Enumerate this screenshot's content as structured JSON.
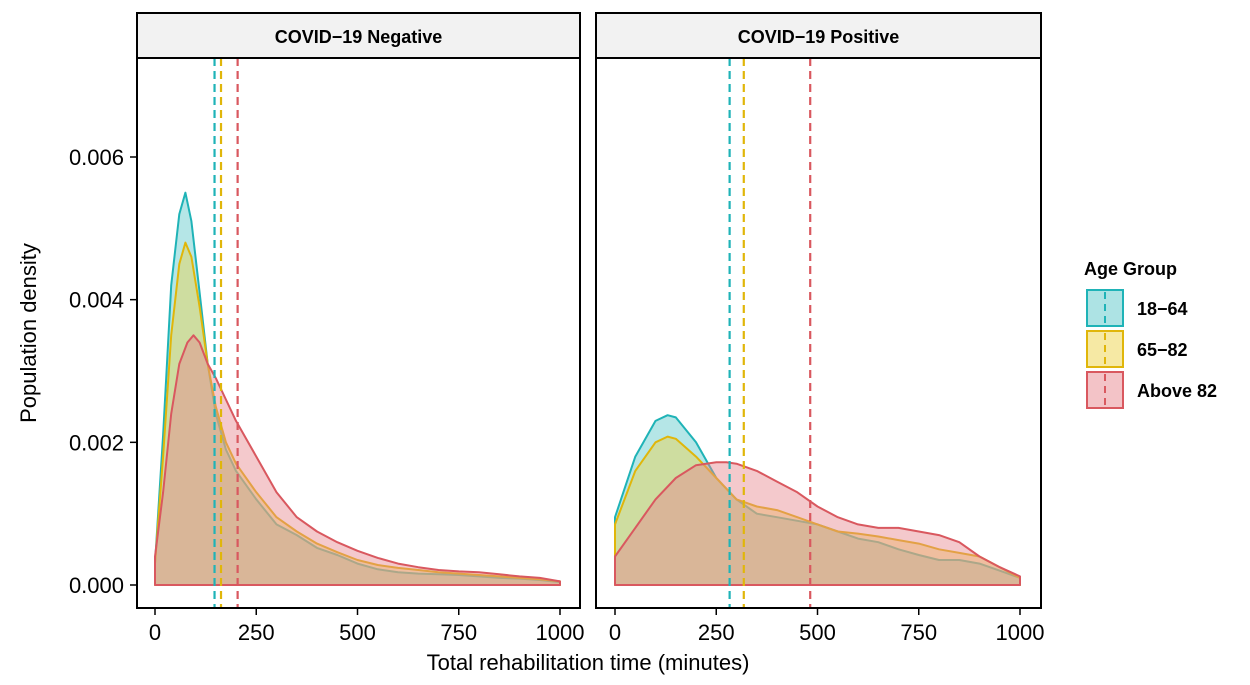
{
  "chart_data": {
    "type": "area",
    "xlabel": "Total rehabilitation time (minutes)",
    "ylabel": "Population density",
    "xlim": [
      0,
      1000
    ],
    "ylim": [
      0,
      0.0073
    ],
    "x_ticks": [
      0,
      250,
      500,
      750,
      1000
    ],
    "x_tick_labels": [
      "0",
      "250",
      "500",
      "750",
      "1000"
    ],
    "y_ticks": [
      0.0,
      0.002,
      0.004,
      0.006
    ],
    "y_tick_labels": [
      "0.000",
      "0.002",
      "0.004",
      "0.006"
    ],
    "grid": false,
    "legend": {
      "title": "Age Group",
      "placement": "right"
    },
    "series_meta": [
      {
        "name": "18−64",
        "fill": "#5CC8C9",
        "stroke": "#1FB3B7"
      },
      {
        "name": "65−82",
        "fill": "#EDD34A",
        "stroke": "#E0B60A"
      },
      {
        "name": "Above 82",
        "fill": "#E7878F",
        "stroke": "#D9585F"
      }
    ],
    "panels": [
      {
        "title": "COVID−19 Negative",
        "series": [
          {
            "name": "18−64",
            "x": [
              0,
              20,
              40,
              60,
              75,
              90,
              110,
              130,
              150,
              175,
              200,
              250,
              300,
              350,
              400,
              450,
              500,
              550,
              600,
              650,
              700,
              750,
              800,
              850,
              900,
              950,
              1000
            ],
            "y": [
              0.0003,
              0.0021,
              0.0042,
              0.0052,
              0.0055,
              0.0051,
              0.0041,
              0.0031,
              0.0024,
              0.0019,
              0.0016,
              0.0012,
              0.00085,
              0.0007,
              0.00052,
              0.00042,
              0.0003,
              0.00022,
              0.00018,
              0.00016,
              0.00015,
              0.00014,
              0.00012,
              0.0001,
              9e-05,
              7e-05,
              4e-05
            ],
            "mean": 147
          },
          {
            "name": "65−82",
            "x": [
              0,
              20,
              40,
              60,
              75,
              90,
              110,
              130,
              150,
              175,
              200,
              250,
              300,
              350,
              400,
              450,
              500,
              550,
              600,
              650,
              700,
              750,
              800,
              850,
              900,
              950,
              1000
            ],
            "y": [
              0.0003,
              0.0018,
              0.0035,
              0.0045,
              0.0048,
              0.0046,
              0.0039,
              0.0031,
              0.0025,
              0.002,
              0.0017,
              0.0013,
              0.00095,
              0.00075,
              0.00058,
              0.00046,
              0.00035,
              0.00028,
              0.00024,
              0.00021,
              0.00018,
              0.00016,
              0.00014,
              0.00012,
              0.0001,
              8e-05,
              5e-05
            ],
            "mean": 163
          },
          {
            "name": "Above 82",
            "x": [
              0,
              20,
              40,
              60,
              80,
              95,
              110,
              130,
              150,
              175,
              200,
              250,
              300,
              350,
              400,
              450,
              500,
              550,
              600,
              650,
              700,
              750,
              800,
              850,
              900,
              950,
              1000
            ],
            "y": [
              0.0004,
              0.0013,
              0.0024,
              0.0031,
              0.0034,
              0.0035,
              0.0034,
              0.0031,
              0.0029,
              0.0026,
              0.0023,
              0.0018,
              0.0013,
              0.00095,
              0.00075,
              0.0006,
              0.00048,
              0.00038,
              0.0003,
              0.00025,
              0.00021,
              0.00019,
              0.00018,
              0.00015,
              0.00012,
              0.0001,
              5e-05
            ],
            "mean": 204
          }
        ]
      },
      {
        "title": "COVID−19 Positive",
        "series": [
          {
            "name": "18−64",
            "x": [
              0,
              50,
              100,
              130,
              150,
              200,
              250,
              300,
              350,
              400,
              450,
              500,
              550,
              600,
              650,
              700,
              750,
              800,
              850,
              900,
              950,
              1000
            ],
            "y": [
              0.00095,
              0.0018,
              0.0023,
              0.00238,
              0.00235,
              0.002,
              0.0015,
              0.0012,
              0.001,
              0.00095,
              0.0009,
              0.00085,
              0.00075,
              0.00065,
              0.0006,
              0.0005,
              0.00042,
              0.00035,
              0.00035,
              0.0003,
              0.0002,
              0.0001
            ],
            "mean": 283
          },
          {
            "name": "65−82",
            "x": [
              0,
              50,
              100,
              130,
              150,
              200,
              250,
              300,
              350,
              400,
              450,
              500,
              550,
              600,
              650,
              700,
              750,
              800,
              850,
              900,
              950,
              1000
            ],
            "y": [
              0.00085,
              0.0016,
              0.002,
              0.00208,
              0.00205,
              0.0018,
              0.0015,
              0.0012,
              0.0011,
              0.00105,
              0.00095,
              0.00085,
              0.00075,
              0.00072,
              0.00068,
              0.00063,
              0.00058,
              0.0005,
              0.00045,
              0.0004,
              0.00025,
              0.0001
            ],
            "mean": 318
          },
          {
            "name": "Above 82",
            "x": [
              0,
              50,
              100,
              150,
              200,
              250,
              275,
              300,
              350,
              400,
              450,
              500,
              550,
              600,
              650,
              700,
              750,
              800,
              850,
              900,
              950,
              1000
            ],
            "y": [
              0.0004,
              0.0008,
              0.0012,
              0.0015,
              0.00168,
              0.00172,
              0.00172,
              0.0017,
              0.0016,
              0.00145,
              0.0013,
              0.0011,
              0.00095,
              0.00085,
              0.0008,
              0.0008,
              0.00075,
              0.0007,
              0.0006,
              0.0004,
              0.00025,
              0.00012
            ],
            "mean": 482
          }
        ]
      }
    ]
  }
}
